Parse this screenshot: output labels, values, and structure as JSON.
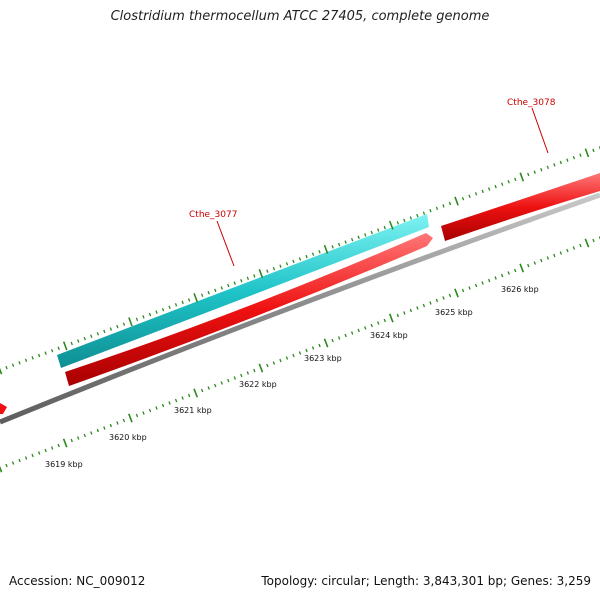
{
  "title": "Clostridium thermocellum ATCC 27405, complete genome",
  "footer": {
    "accession": "Accession: NC_009012",
    "summary": "Topology: circular; Length: 3,843,301 bp; Genes: 3,259"
  },
  "genes": [
    {
      "name": "Cthe_3077",
      "color": "#cc0000"
    },
    {
      "name": "Cthe_3078",
      "color": "#cc0000"
    }
  ],
  "kbp_labels": [
    "3619 kbp",
    "3620 kbp",
    "3621 kbp",
    "3622 kbp",
    "3623 kbp",
    "3624 kbp",
    "3625 kbp",
    "3626 kbp"
  ],
  "colors": {
    "forward_gene": "#1fc4c8",
    "reverse_gene": "#ee1111",
    "backbone": "#8a8a8a",
    "tick": "#2d8a1e",
    "label_red": "#cc0000"
  }
}
